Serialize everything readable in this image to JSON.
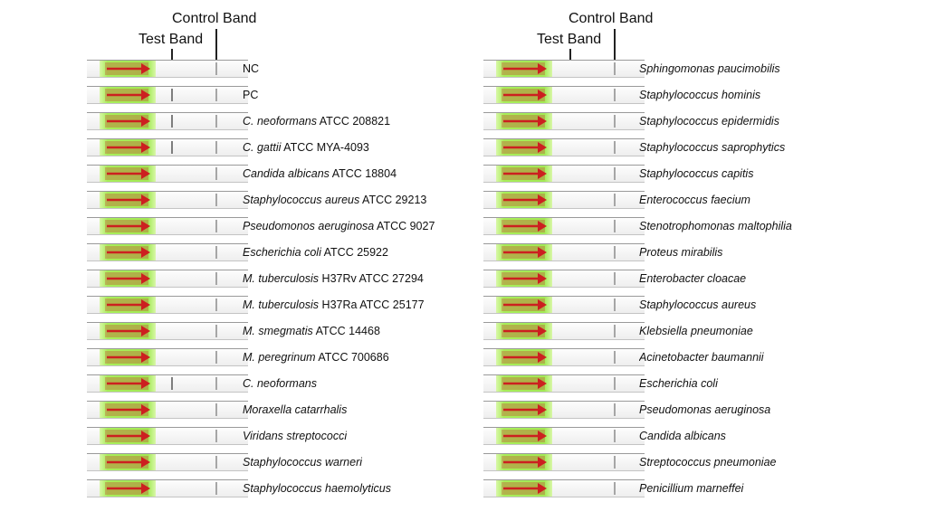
{
  "headers": {
    "control_band": "Control Band",
    "test_band": "Test Band"
  },
  "colors": {
    "sample_pad": "#a8ee5a",
    "arrow": "#cc2020",
    "band": "#9c9c9c"
  },
  "left_column": [
    {
      "italic": "",
      "normal": "NC",
      "test_band": false
    },
    {
      "italic": "",
      "normal": "PC",
      "test_band": true
    },
    {
      "italic": "C. neoformans",
      "normal": " ATCC 208821",
      "test_band": true
    },
    {
      "italic": "C. gattii",
      "normal": " ATCC MYA-4093",
      "test_band": true
    },
    {
      "italic": "Candida albicans",
      "normal": " ATCC 18804",
      "test_band": false
    },
    {
      "italic": "Staphylococcus aureus",
      "normal": " ATCC 29213",
      "test_band": false
    },
    {
      "italic": "Pseudomonos aeruginosa",
      "normal": " ATCC 9027",
      "test_band": false
    },
    {
      "italic": "Escherichia coli",
      "normal": " ATCC 25922",
      "test_band": false
    },
    {
      "italic": "M. tuberculosis",
      "normal": " H37Rv ATCC 27294",
      "test_band": false
    },
    {
      "italic": "M. tuberculosis",
      "normal": " H37Ra ATCC 25177",
      "test_band": false
    },
    {
      "italic": "M. smegmatis",
      "normal": " ATCC 14468",
      "test_band": false
    },
    {
      "italic": "M. peregrinum",
      "normal": " ATCC 700686",
      "test_band": false
    },
    {
      "italic": "C. neoformans",
      "normal": "",
      "test_band": true
    },
    {
      "italic": "Moraxella catarrhalis",
      "normal": "",
      "test_band": false
    },
    {
      "italic": "Viridans streptococci",
      "normal": "",
      "test_band": false
    },
    {
      "italic": "Staphylococcus warneri",
      "normal": "",
      "test_band": false
    },
    {
      "italic": "Staphylococcus haemolyticus",
      "normal": "",
      "test_band": false
    }
  ],
  "right_column": [
    {
      "italic": "Sphingomonas paucimobilis",
      "normal": "",
      "test_band": false
    },
    {
      "italic": "Staphylococcus hominis",
      "normal": "",
      "test_band": false
    },
    {
      "italic": "Staphylococcus epidermidis",
      "normal": "",
      "test_band": false
    },
    {
      "italic": "Staphylococcus saprophytics",
      "normal": "",
      "test_band": false
    },
    {
      "italic": "Staphylococcus capitis",
      "normal": "",
      "test_band": false
    },
    {
      "italic": "Enterococcus faecium",
      "normal": "",
      "test_band": false
    },
    {
      "italic": "Stenotrophomonas maltophilia",
      "normal": "",
      "test_band": false
    },
    {
      "italic": "Proteus mirabilis",
      "normal": "",
      "test_band": false
    },
    {
      "italic": "Enterobacter cloacae",
      "normal": "",
      "test_band": false
    },
    {
      "italic": "Staphylococcus aureus",
      "normal": "",
      "test_band": false
    },
    {
      "italic": "Klebsiella pneumoniae",
      "normal": "",
      "test_band": false
    },
    {
      "italic": "Acinetobacter baumannii",
      "normal": "",
      "test_band": false
    },
    {
      "italic": "Escherichia coli",
      "normal": "",
      "test_band": false
    },
    {
      "italic": "Pseudomonas aeruginosa",
      "normal": "",
      "test_band": false
    },
    {
      "italic": "Candida albicans",
      "normal": "",
      "test_band": false
    },
    {
      "italic": "Streptococcus pneumoniae",
      "normal": "",
      "test_band": false
    },
    {
      "italic": "Penicillium marneffei",
      "normal": "",
      "test_band": false
    }
  ]
}
